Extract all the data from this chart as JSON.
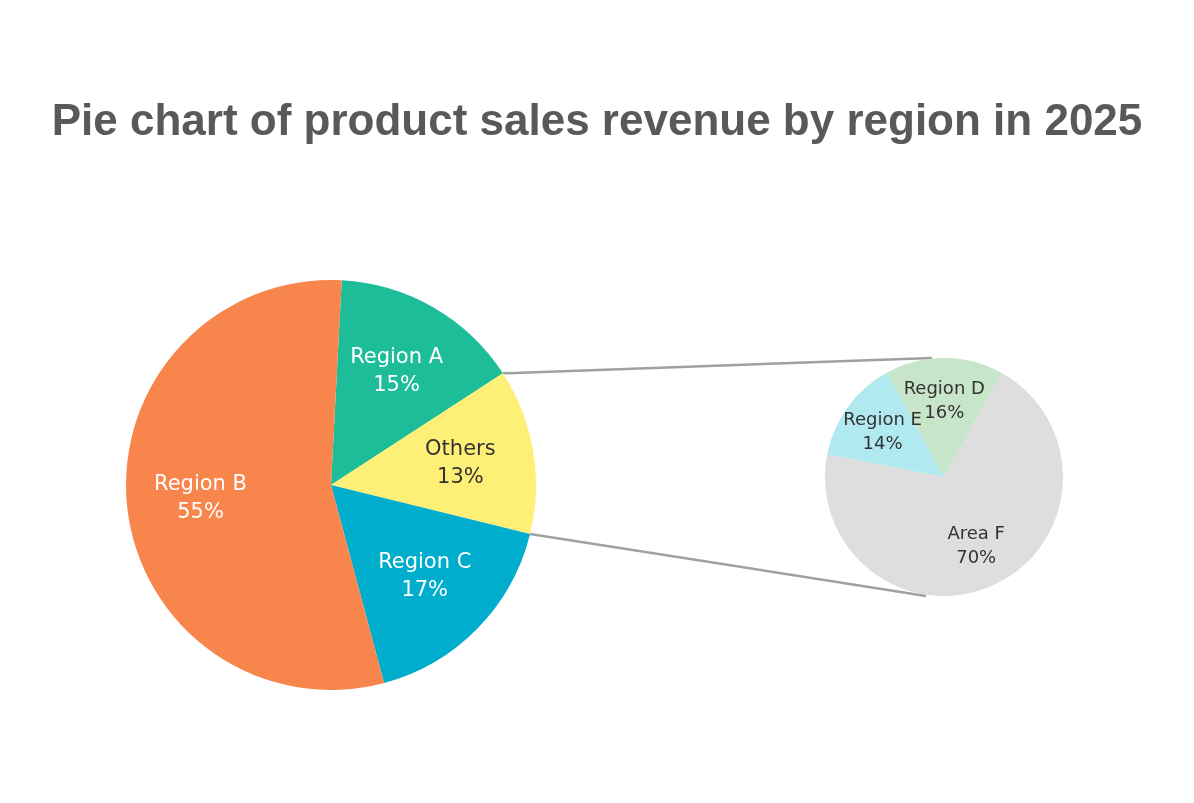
{
  "chart_data": [
    {
      "type": "pie",
      "title": "Pie chart of product sales revenue by region in 2025",
      "categories": [
        "Region A",
        "Others",
        "Region C",
        "Region B"
      ],
      "values": [
        15,
        13,
        17,
        55
      ],
      "colors": [
        "#1dbd9a",
        "#fef076",
        "#00adcd",
        "#f7854c"
      ],
      "value_labels": [
        "15%",
        "13%",
        "17%",
        "55%"
      ]
    },
    {
      "type": "pie",
      "categories": [
        "Area F",
        "Region E",
        "Region D"
      ],
      "values": [
        70,
        14,
        16
      ],
      "colors": [
        "#dedede",
        "#b1e9f1",
        "#c7e5c8"
      ],
      "value_labels": [
        "70%",
        "14%",
        "16%"
      ]
    }
  ]
}
